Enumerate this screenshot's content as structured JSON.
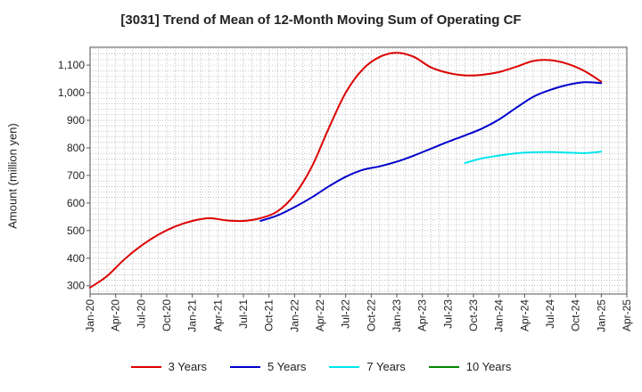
{
  "chart_data": {
    "type": "line",
    "title": "[3031]  Trend of Mean of 12-Month Moving Sum of Operating CF",
    "ylabel": "Amount (million yen)",
    "xlabel": "",
    "ylim": [
      270,
      1165
    ],
    "y_ticks": [
      300,
      400,
      500,
      600,
      700,
      800,
      900,
      1000,
      1100
    ],
    "y_tick_labels": [
      "300",
      "400",
      "500",
      "600",
      "700",
      "800",
      "900",
      "1,000",
      "1,100"
    ],
    "x_tick_labels": [
      "Jan-20",
      "Apr-20",
      "Jul-20",
      "Oct-20",
      "Jan-21",
      "Apr-21",
      "Jul-21",
      "Oct-21",
      "Jan-22",
      "Apr-22",
      "Jul-22",
      "Oct-22",
      "Jan-23",
      "Apr-23",
      "Jul-23",
      "Oct-23",
      "Jan-24",
      "Apr-24",
      "Jul-24",
      "Oct-24",
      "Jan-25",
      "Apr-25"
    ],
    "x_unit": "months since Jan-20",
    "xlim": [
      0,
      63
    ],
    "grid": true,
    "legend_position": "bottom",
    "series": [
      {
        "name": "3 Years",
        "color": "#dd0000",
        "x": [
          0,
          2,
          4,
          6,
          8,
          10,
          12,
          14,
          16,
          18,
          20,
          22,
          24,
          26,
          28,
          30,
          32,
          34,
          36,
          38,
          40,
          42,
          44,
          46,
          48,
          50,
          52,
          54,
          56,
          58,
          60
        ],
        "values": [
          293,
          335,
          395,
          445,
          485,
          515,
          535,
          545,
          537,
          535,
          545,
          570,
          630,
          730,
          870,
          1000,
          1085,
          1130,
          1145,
          1130,
          1092,
          1072,
          1063,
          1065,
          1075,
          1094,
          1115,
          1118,
          1105,
          1079,
          1040
        ]
      },
      {
        "name": "5 Years",
        "color": "#0000cc",
        "x": [
          20,
          22,
          24,
          26,
          28,
          30,
          32,
          34,
          36,
          38,
          40,
          42,
          44,
          46,
          48,
          50,
          52,
          54,
          56,
          58,
          60
        ],
        "values": [
          535,
          555,
          585,
          620,
          660,
          695,
          720,
          733,
          750,
          772,
          797,
          822,
          845,
          870,
          903,
          945,
          985,
          1010,
          1028,
          1038,
          1035
        ]
      },
      {
        "name": "7 Years",
        "color": "#00e5ee",
        "x": [
          44,
          46,
          48,
          50,
          52,
          54,
          56,
          58,
          60
        ],
        "values": [
          745,
          762,
          772,
          780,
          784,
          785,
          783,
          781,
          786
        ]
      },
      {
        "name": "10 Years",
        "color": "#008800",
        "x": [],
        "values": []
      }
    ]
  }
}
